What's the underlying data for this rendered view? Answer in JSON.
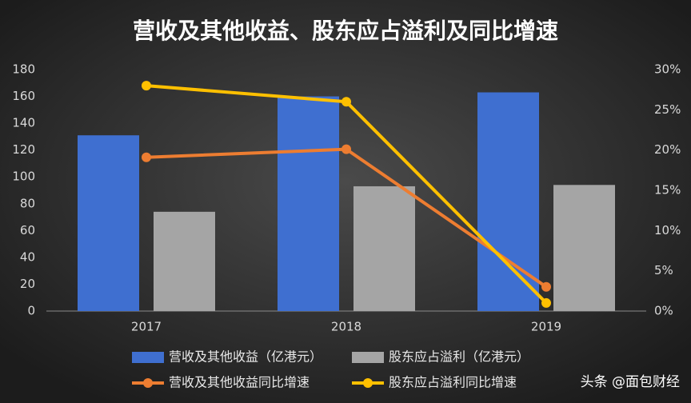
{
  "chart_data": {
    "type": "bar",
    "title": "营收及其他收益、股东应占溢利及同比增速",
    "categories": [
      "2017",
      "2018",
      "2019"
    ],
    "series": [
      {
        "name": "营收及其他收益（亿港元）",
        "type": "bar",
        "color": "#3f6fd0",
        "values": [
          131,
          160,
          163
        ]
      },
      {
        "name": "股东应占溢利（亿港元）",
        "type": "bar",
        "color": "#a5a5a5",
        "values": [
          74,
          93,
          94
        ]
      },
      {
        "name": "营收及其他收益同比增速",
        "type": "line",
        "axis": "y2",
        "color": "#ed7d31",
        "values": [
          19.1,
          20.1,
          3.0
        ]
      },
      {
        "name": "股东应占溢利同比增速",
        "type": "line",
        "axis": "y2",
        "color": "#ffc000",
        "values": [
          28.0,
          26.0,
          1.0
        ]
      }
    ],
    "ylim": [
      0,
      180
    ],
    "yticks": [
      0,
      20,
      40,
      60,
      80,
      100,
      120,
      140,
      160,
      180
    ],
    "y2lim": [
      0,
      30
    ],
    "y2ticks": [
      {
        "value": 0,
        "label": "0%"
      },
      {
        "value": 5,
        "label": "5%"
      },
      {
        "value": 10,
        "label": "10%"
      },
      {
        "value": 15,
        "label": "15%"
      },
      {
        "value": 20,
        "label": "20%"
      },
      {
        "value": 25,
        "label": "25%"
      },
      {
        "value": 30,
        "label": "30%"
      }
    ],
    "grid": false,
    "footer": "头条 @面包财经"
  }
}
